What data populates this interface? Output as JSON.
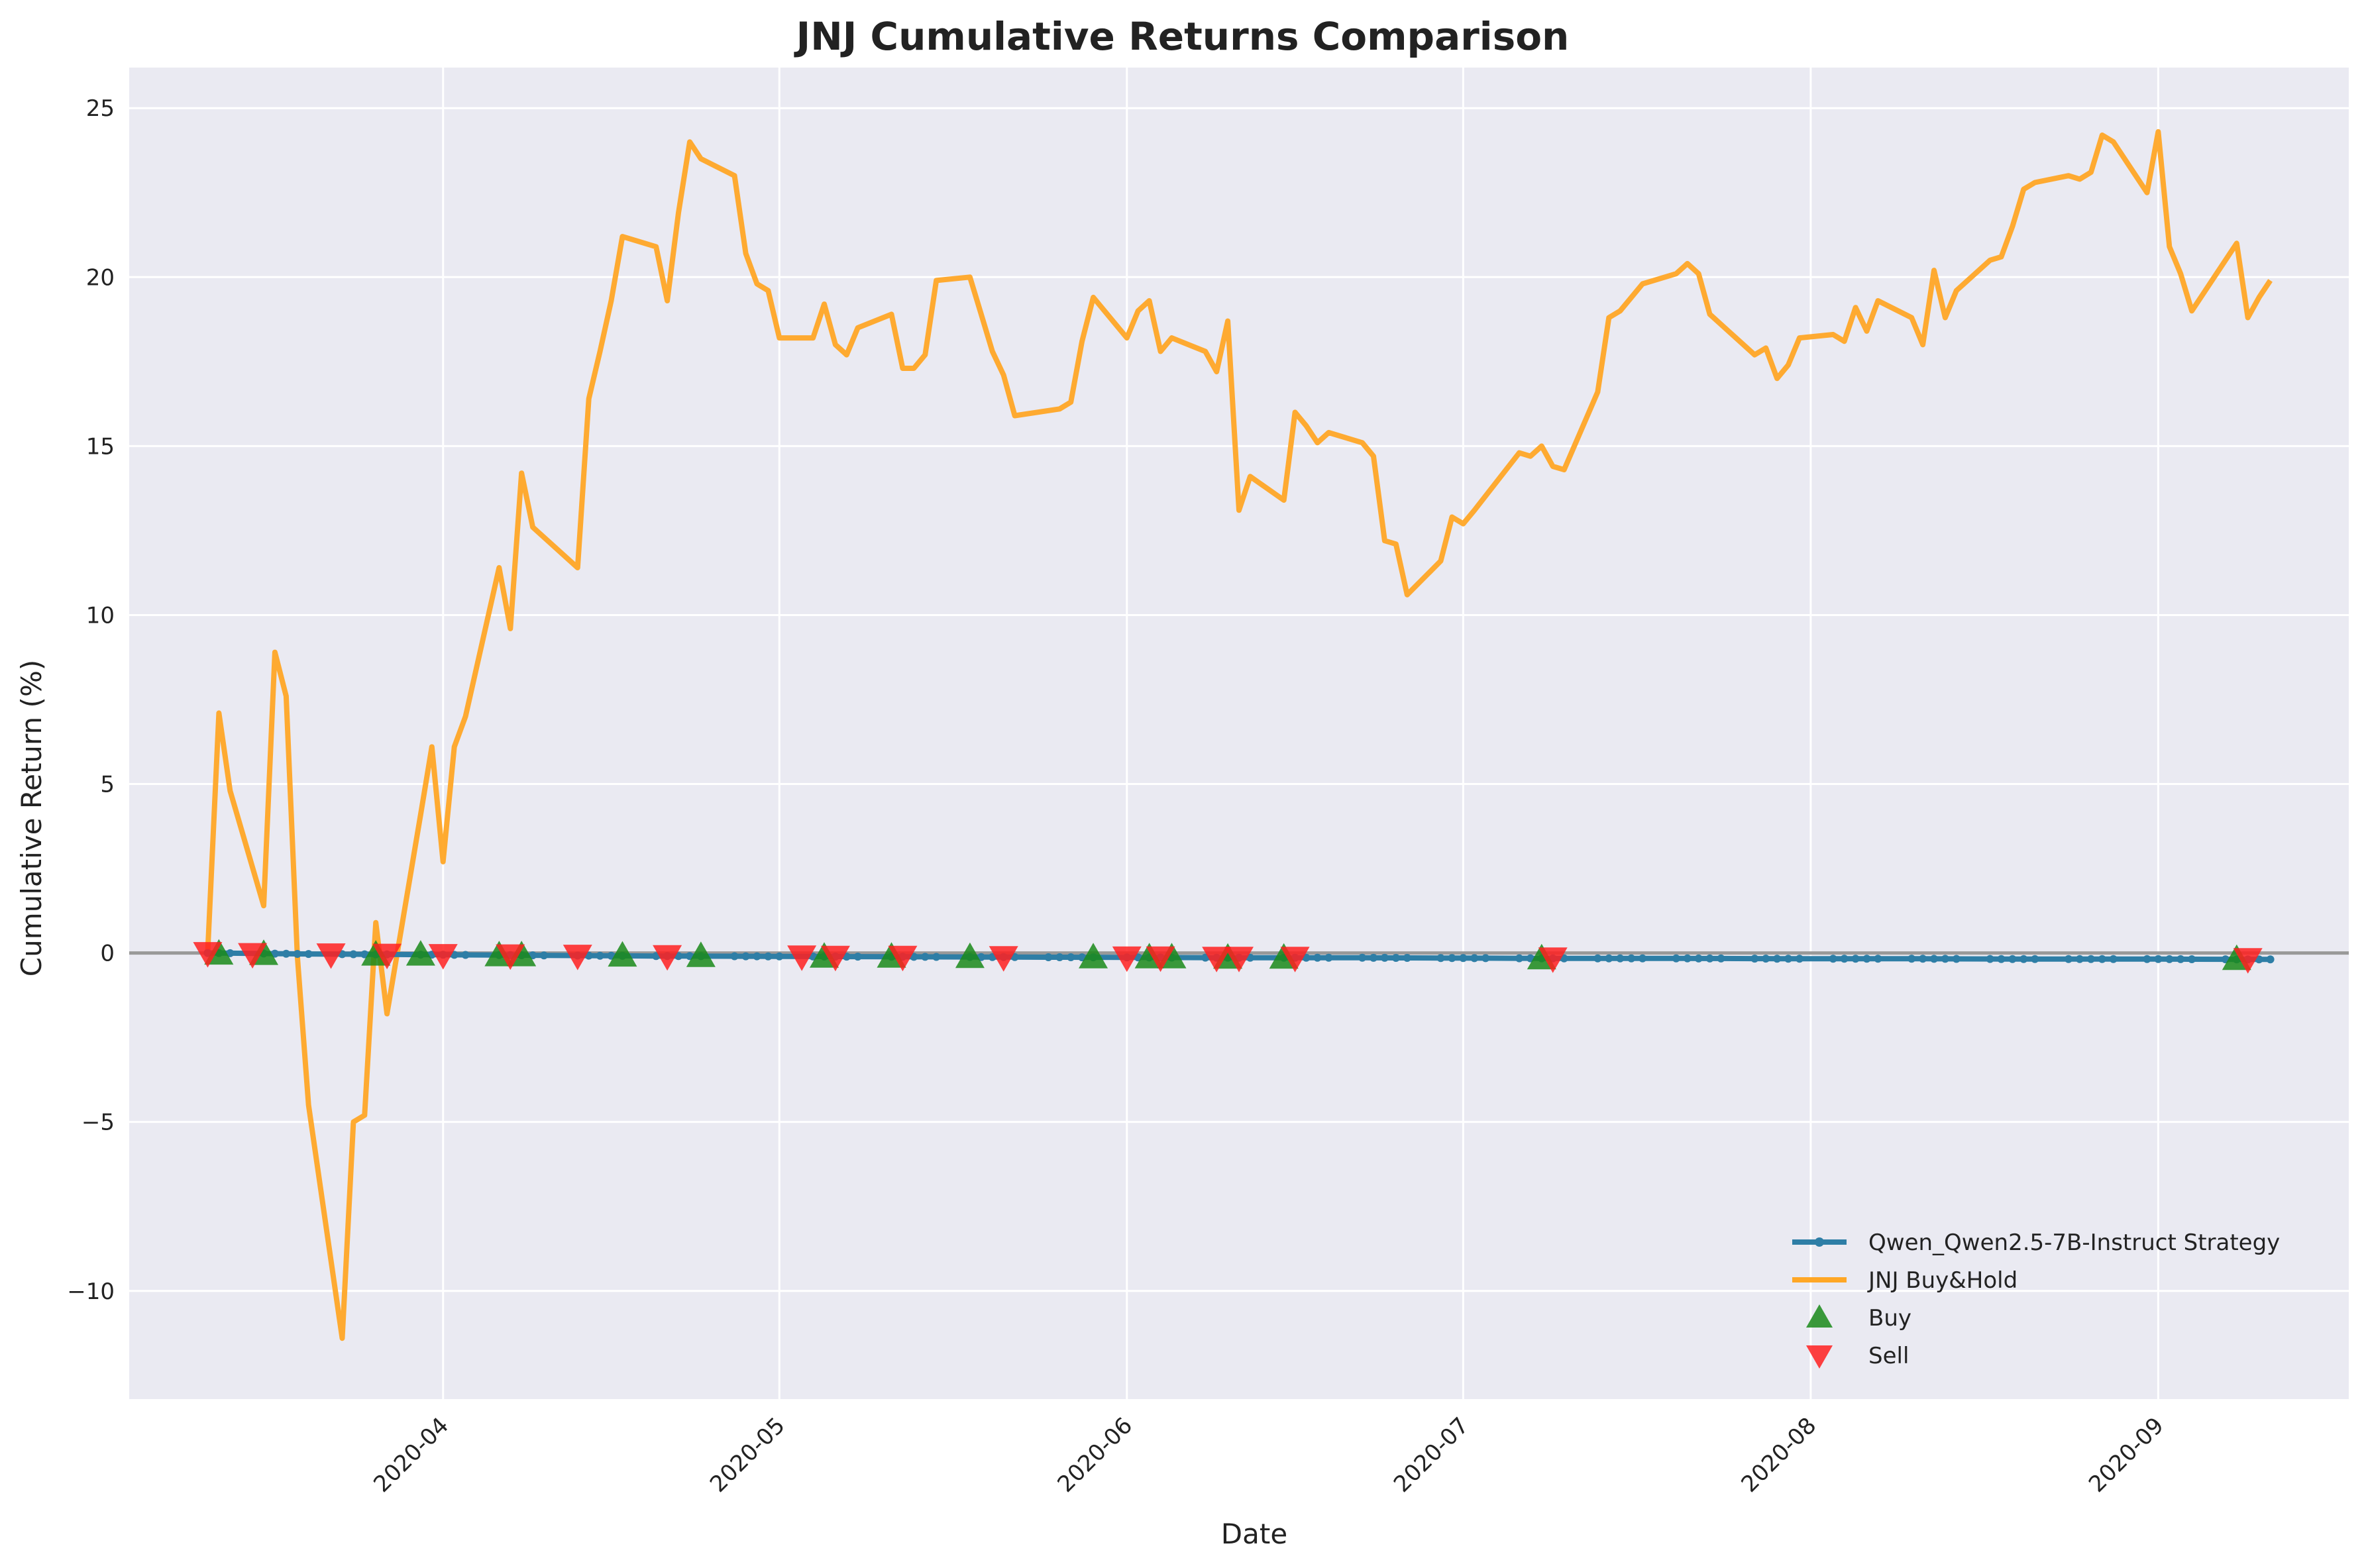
{
  "chart_data": {
    "type": "line",
    "title": "JNJ Cumulative Returns Comparison",
    "xlabel": "Date",
    "ylabel": "Cumulative Return (%)",
    "xlim": [
      "2020-03-04",
      "2020-09-18"
    ],
    "ylim": [
      -13.2,
      26.2
    ],
    "yticks": [
      -10,
      -5,
      0,
      5,
      10,
      15,
      20,
      25
    ],
    "yticklabels": [
      "−10",
      "−5",
      "0",
      "5",
      "10",
      "15",
      "20",
      "25"
    ],
    "xticks": [
      "2020-04-01",
      "2020-05-01",
      "2020-06-01",
      "2020-07-01",
      "2020-08-01",
      "2020-09-01"
    ],
    "xticklabels": [
      "2020-04",
      "2020-05",
      "2020-06",
      "2020-07",
      "2020-08",
      "2020-09"
    ],
    "grid": true,
    "legend_position": "lower-right",
    "reference_line": 0,
    "colors": {
      "strategy": "#2e7ea6",
      "buyhold": "#ffa726",
      "buy": "#1a8a1a",
      "sell": "#ff2020",
      "plot_bg": "#eaeaf2",
      "grid": "#ffffff",
      "zero_line": "#999999"
    },
    "series": [
      {
        "name": "Qwen_Qwen2.5-7B-Instruct Strategy",
        "style": "line-with-dots",
        "x": [
          "2020-03-11",
          "2020-03-20",
          "2020-03-31",
          "2020-04-10",
          "2020-04-20",
          "2020-04-30",
          "2020-05-10",
          "2020-05-20",
          "2020-05-31",
          "2020-06-10",
          "2020-06-20",
          "2020-06-30",
          "2020-07-10",
          "2020-07-20",
          "2020-07-31",
          "2020-08-10",
          "2020-08-20",
          "2020-08-31",
          "2020-09-11"
        ],
        "y": [
          0,
          -0.03,
          -0.05,
          -0.07,
          -0.09,
          -0.1,
          -0.11,
          -0.12,
          -0.13,
          -0.14,
          -0.14,
          -0.15,
          -0.16,
          -0.16,
          -0.17,
          -0.17,
          -0.18,
          -0.18,
          -0.19
        ]
      },
      {
        "name": "JNJ Buy&Hold",
        "style": "line",
        "x": [
          "2020-03-11",
          "2020-03-12",
          "2020-03-13",
          "2020-03-16",
          "2020-03-17",
          "2020-03-18",
          "2020-03-19",
          "2020-03-20",
          "2020-03-23",
          "2020-03-24",
          "2020-03-25",
          "2020-03-26",
          "2020-03-27",
          "2020-03-30",
          "2020-03-31",
          "2020-04-01",
          "2020-04-02",
          "2020-04-03",
          "2020-04-06",
          "2020-04-07",
          "2020-04-08",
          "2020-04-09",
          "2020-04-13",
          "2020-04-14",
          "2020-04-15",
          "2020-04-16",
          "2020-04-17",
          "2020-04-20",
          "2020-04-21",
          "2020-04-22",
          "2020-04-23",
          "2020-04-24",
          "2020-04-27",
          "2020-04-28",
          "2020-04-29",
          "2020-04-30",
          "2020-05-01",
          "2020-05-04",
          "2020-05-05",
          "2020-05-06",
          "2020-05-07",
          "2020-05-08",
          "2020-05-11",
          "2020-05-12",
          "2020-05-13",
          "2020-05-14",
          "2020-05-15",
          "2020-05-18",
          "2020-05-19",
          "2020-05-20",
          "2020-05-21",
          "2020-05-22",
          "2020-05-26",
          "2020-05-27",
          "2020-05-28",
          "2020-05-29",
          "2020-06-01",
          "2020-06-02",
          "2020-06-03",
          "2020-06-04",
          "2020-06-05",
          "2020-06-08",
          "2020-06-09",
          "2020-06-10",
          "2020-06-11",
          "2020-06-12",
          "2020-06-15",
          "2020-06-16",
          "2020-06-17",
          "2020-06-18",
          "2020-06-19",
          "2020-06-22",
          "2020-06-23",
          "2020-06-24",
          "2020-06-25",
          "2020-06-26",
          "2020-06-29",
          "2020-06-30",
          "2020-07-01",
          "2020-07-02",
          "2020-07-06",
          "2020-07-07",
          "2020-07-08",
          "2020-07-09",
          "2020-07-10",
          "2020-07-13",
          "2020-07-14",
          "2020-07-15",
          "2020-07-16",
          "2020-07-17",
          "2020-07-20",
          "2020-07-21",
          "2020-07-22",
          "2020-07-23",
          "2020-07-24",
          "2020-07-27",
          "2020-07-28",
          "2020-07-29",
          "2020-07-30",
          "2020-07-31",
          "2020-08-03",
          "2020-08-04",
          "2020-08-05",
          "2020-08-06",
          "2020-08-07",
          "2020-08-10",
          "2020-08-11",
          "2020-08-12",
          "2020-08-13",
          "2020-08-14",
          "2020-08-17",
          "2020-08-18",
          "2020-08-19",
          "2020-08-20",
          "2020-08-21",
          "2020-08-24",
          "2020-08-25",
          "2020-08-26",
          "2020-08-27",
          "2020-08-28",
          "2020-08-31",
          "2020-09-01",
          "2020-09-02",
          "2020-09-03",
          "2020-09-04",
          "2020-09-08",
          "2020-09-09",
          "2020-09-10",
          "2020-09-11"
        ],
        "y": [
          0,
          7.1,
          4.8,
          1.4,
          8.9,
          7.6,
          -0.1,
          -4.5,
          -11.4,
          -5.0,
          -4.8,
          0.9,
          -1.8,
          4.1,
          6.1,
          2.7,
          6.1,
          7.0,
          11.4,
          9.6,
          14.2,
          12.6,
          11.4,
          16.4,
          17.8,
          19.3,
          21.2,
          20.9,
          19.3,
          21.9,
          24.0,
          23.5,
          23.0,
          20.7,
          19.8,
          19.6,
          18.2,
          18.2,
          19.2,
          18.0,
          17.7,
          18.5,
          18.9,
          17.3,
          17.3,
          17.7,
          19.9,
          20.0,
          18.9,
          17.8,
          17.1,
          15.9,
          16.1,
          16.3,
          18.1,
          19.4,
          18.2,
          19.0,
          19.3,
          17.8,
          18.2,
          17.8,
          17.2,
          18.7,
          13.1,
          14.1,
          13.4,
          16.0,
          15.6,
          15.1,
          15.4,
          15.1,
          14.7,
          12.2,
          12.1,
          10.6,
          11.6,
          12.9,
          12.7,
          13.1,
          14.8,
          14.7,
          15.0,
          14.4,
          14.3,
          16.6,
          18.8,
          19.0,
          19.4,
          19.8,
          20.1,
          20.4,
          20.1,
          18.9,
          18.6,
          17.7,
          17.9,
          17.0,
          17.4,
          18.2,
          18.3,
          18.1,
          19.1,
          18.4,
          19.3,
          18.8,
          18.0,
          20.2,
          18.8,
          19.6,
          20.5,
          20.6,
          21.5,
          22.6,
          22.8,
          23.0,
          22.9,
          23.1,
          24.2,
          24.0,
          22.5,
          24.3,
          20.9,
          20.1,
          19.0,
          21.0,
          18.8,
          19.4,
          19.9
        ]
      }
    ],
    "markers": [
      {
        "name": "Buy",
        "symbol": "triangle-up",
        "x": [
          "2020-03-12",
          "2020-03-16",
          "2020-03-26",
          "2020-03-30",
          "2020-04-06",
          "2020-04-08",
          "2020-04-17",
          "2020-04-24",
          "2020-05-05",
          "2020-05-11",
          "2020-05-18",
          "2020-05-29",
          "2020-06-03",
          "2020-06-05",
          "2020-06-10",
          "2020-06-15",
          "2020-07-08",
          "2020-09-08"
        ],
        "y": [
          -0.02,
          -0.03,
          -0.05,
          -0.05,
          -0.07,
          -0.07,
          -0.08,
          -0.09,
          -0.11,
          -0.11,
          -0.12,
          -0.13,
          -0.13,
          -0.13,
          -0.14,
          -0.14,
          -0.16,
          -0.18
        ]
      },
      {
        "name": "Sell",
        "symbol": "triangle-down",
        "x": [
          "2020-03-11",
          "2020-03-15",
          "2020-03-22",
          "2020-03-27",
          "2020-04-01",
          "2020-04-07",
          "2020-04-13",
          "2020-04-21",
          "2020-05-03",
          "2020-05-06",
          "2020-05-12",
          "2020-05-21",
          "2020-06-01",
          "2020-06-04",
          "2020-06-09",
          "2020-06-11",
          "2020-06-16",
          "2020-07-09",
          "2020-09-09"
        ],
        "y": [
          0,
          -0.03,
          -0.04,
          -0.05,
          -0.06,
          -0.07,
          -0.08,
          -0.09,
          -0.1,
          -0.11,
          -0.11,
          -0.12,
          -0.13,
          -0.13,
          -0.14,
          -0.14,
          -0.14,
          -0.16,
          -0.18
        ]
      }
    ],
    "legend": [
      {
        "label": "Qwen_Qwen2.5-7B-Instruct Strategy",
        "kind": "line-dot",
        "color_key": "strategy"
      },
      {
        "label": "JNJ Buy&Hold",
        "kind": "line",
        "color_key": "buyhold"
      },
      {
        "label": "Buy",
        "kind": "triangle-up",
        "color_key": "buy"
      },
      {
        "label": "Sell",
        "kind": "triangle-down",
        "color_key": "sell"
      }
    ]
  }
}
